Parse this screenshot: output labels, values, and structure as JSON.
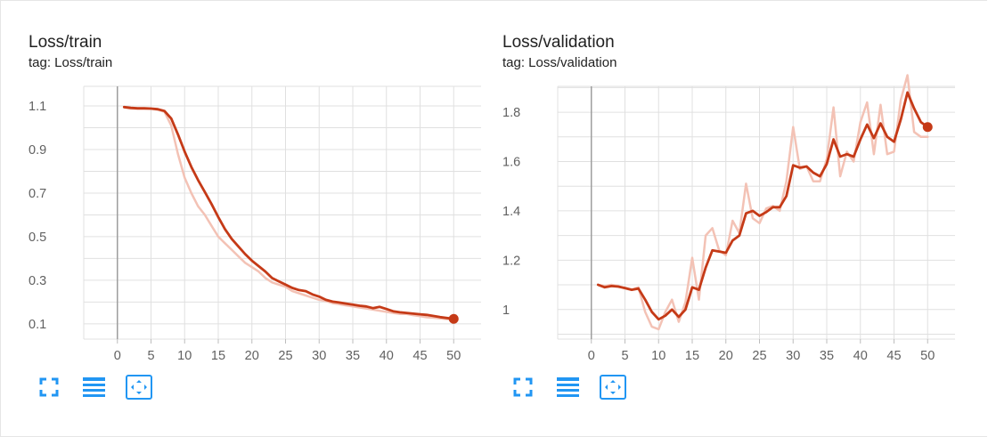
{
  "colors": {
    "smoothed": "#c53a17",
    "raw": "#f3c2b5",
    "grid": "#e0e0e0",
    "zero_line": "#9e9e9e",
    "tick_text": "#616161",
    "toolbar_icon": "#2196f3"
  },
  "toolbar_icons": [
    "fullscreen-icon",
    "toggle-log-scale-icon",
    "fit-domain-icon"
  ],
  "cards": [
    {
      "title": "Loss/train",
      "tag": "tag: Loss/train",
      "chart_data": {
        "type": "line",
        "title": "Loss/train",
        "xlabel": "",
        "ylabel": "",
        "xlim": [
          -5,
          55
        ],
        "ylim": [
          0.03,
          1.19
        ],
        "x_ticks": [
          0,
          5,
          10,
          15,
          20,
          25,
          30,
          35,
          40,
          45,
          50
        ],
        "y_ticks": [
          0.1,
          0.3,
          0.5,
          0.7,
          0.9,
          1.1
        ],
        "y_tick_labels": [
          "0.1",
          "0.3",
          "0.5",
          "0.7",
          "0.9",
          "1.1"
        ],
        "grid": true,
        "series": [
          {
            "role": "raw",
            "x": [
              1,
              2,
              3,
              4,
              5,
              6,
              7,
              8,
              9,
              10,
              11,
              12,
              13,
              14,
              15,
              16,
              17,
              18,
              19,
              20,
              21,
              22,
              23,
              24,
              25,
              26,
              27,
              28,
              29,
              30,
              31,
              32,
              33,
              34,
              35,
              36,
              37,
              38,
              39,
              40,
              41,
              42,
              43,
              44,
              45,
              46,
              47,
              48,
              49,
              50
            ],
            "values": [
              1.093,
              1.088,
              1.087,
              1.087,
              1.087,
              1.082,
              1.073,
              1.01,
              0.88,
              0.77,
              0.7,
              0.64,
              0.6,
              0.55,
              0.5,
              0.47,
              0.44,
              0.41,
              0.38,
              0.36,
              0.34,
              0.31,
              0.29,
              0.28,
              0.27,
              0.25,
              0.24,
              0.23,
              0.22,
              0.21,
              0.205,
              0.195,
              0.19,
              0.185,
              0.18,
              0.175,
              0.17,
              0.165,
              0.16,
              0.155,
              0.15,
              0.145,
              0.145,
              0.14,
              0.135,
              0.13,
              0.128,
              0.125,
              0.122,
              0.12
            ]
          },
          {
            "role": "smoothed",
            "x": [
              1,
              2,
              3,
              4,
              5,
              6,
              7,
              8,
              9,
              10,
              11,
              12,
              13,
              14,
              15,
              16,
              17,
              18,
              19,
              20,
              21,
              22,
              23,
              24,
              25,
              26,
              27,
              28,
              29,
              30,
              31,
              32,
              33,
              34,
              35,
              36,
              37,
              38,
              39,
              40,
              41,
              42,
              43,
              44,
              45,
              46,
              47,
              48,
              49,
              50
            ],
            "values": [
              1.095,
              1.091,
              1.089,
              1.089,
              1.088,
              1.085,
              1.077,
              1.042,
              0.97,
              0.89,
              0.82,
              0.76,
              0.705,
              0.65,
              0.59,
              0.535,
              0.49,
              0.455,
              0.42,
              0.39,
              0.365,
              0.34,
              0.31,
              0.295,
              0.28,
              0.265,
              0.255,
              0.25,
              0.235,
              0.225,
              0.21,
              0.202,
              0.198,
              0.193,
              0.188,
              0.183,
              0.18,
              0.172,
              0.178,
              0.168,
              0.158,
              0.153,
              0.15,
              0.147,
              0.144,
              0.141,
              0.136,
              0.131,
              0.127,
              0.123
            ]
          }
        ]
      }
    },
    {
      "title": "Loss/validation",
      "tag": "tag: Loss/validation",
      "chart_data": {
        "type": "line",
        "title": "Loss/validation",
        "xlabel": "",
        "ylabel": "",
        "xlim": [
          -5,
          55
        ],
        "ylim": [
          0.88,
          1.905
        ],
        "x_ticks": [
          0,
          5,
          10,
          15,
          20,
          25,
          30,
          35,
          40,
          45,
          50
        ],
        "y_ticks": [
          1.0,
          1.2,
          1.4,
          1.6,
          1.8
        ],
        "y_tick_labels": [
          "1",
          "1.2",
          "1.4",
          "1.6",
          "1.8"
        ],
        "grid": true,
        "series": [
          {
            "role": "raw",
            "x": [
              1,
              2,
              3,
              4,
              5,
              6,
              7,
              8,
              9,
              10,
              11,
              12,
              13,
              14,
              15,
              16,
              17,
              18,
              19,
              20,
              21,
              22,
              23,
              24,
              25,
              26,
              27,
              28,
              29,
              30,
              31,
              32,
              33,
              34,
              35,
              36,
              37,
              38,
              39,
              40,
              41,
              42,
              43,
              44,
              45,
              46,
              47,
              48,
              49,
              50
            ],
            "values": [
              1.1,
              1.095,
              1.1,
              1.095,
              1.085,
              1.08,
              1.09,
              0.99,
              0.93,
              0.92,
              0.99,
              1.04,
              0.95,
              1.03,
              1.21,
              1.04,
              1.3,
              1.33,
              1.24,
              1.22,
              1.36,
              1.31,
              1.51,
              1.37,
              1.35,
              1.41,
              1.42,
              1.4,
              1.52,
              1.74,
              1.57,
              1.58,
              1.52,
              1.52,
              1.61,
              1.82,
              1.54,
              1.64,
              1.6,
              1.76,
              1.84,
              1.63,
              1.83,
              1.63,
              1.64,
              1.85,
              1.95,
              1.72,
              1.7,
              1.7
            ]
          },
          {
            "role": "smoothed",
            "x": [
              1,
              2,
              3,
              4,
              5,
              6,
              7,
              8,
              9,
              10,
              11,
              12,
              13,
              14,
              15,
              16,
              17,
              18,
              19,
              20,
              21,
              22,
              23,
              24,
              25,
              26,
              27,
              28,
              29,
              30,
              31,
              32,
              33,
              34,
              35,
              36,
              37,
              38,
              39,
              40,
              41,
              42,
              43,
              44,
              45,
              46,
              47,
              48,
              49,
              50
            ],
            "values": [
              1.1,
              1.09,
              1.095,
              1.093,
              1.087,
              1.08,
              1.085,
              1.04,
              0.99,
              0.96,
              0.975,
              1.0,
              0.97,
              1.0,
              1.09,
              1.08,
              1.17,
              1.24,
              1.235,
              1.23,
              1.28,
              1.3,
              1.39,
              1.4,
              1.38,
              1.395,
              1.415,
              1.415,
              1.46,
              1.585,
              1.575,
              1.58,
              1.555,
              1.54,
              1.59,
              1.69,
              1.62,
              1.63,
              1.62,
              1.69,
              1.75,
              1.695,
              1.755,
              1.7,
              1.68,
              1.77,
              1.88,
              1.815,
              1.76,
              1.74
            ]
          }
        ]
      }
    }
  ]
}
